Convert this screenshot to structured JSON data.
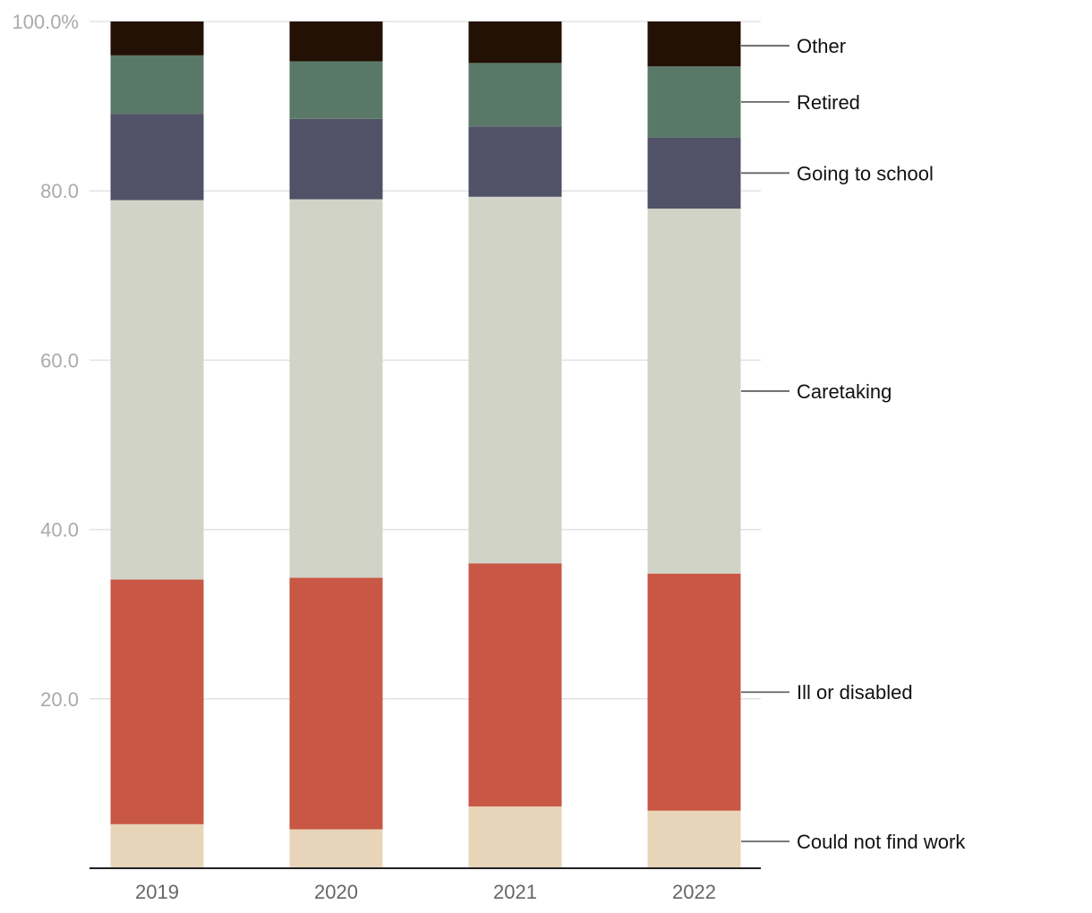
{
  "chart_data": {
    "type": "bar",
    "stacked": true,
    "categories": [
      "2019",
      "2020",
      "2021",
      "2022"
    ],
    "series": [
      {
        "name": "Could not find work",
        "color": "#e8d4b8",
        "values": [
          5.2,
          4.6,
          7.3,
          6.8
        ]
      },
      {
        "name": "Ill or disabled",
        "color": "#c85745",
        "values": [
          28.9,
          29.7,
          28.7,
          28.0
        ]
      },
      {
        "name": "Caretaking",
        "color": "#d1d3c6",
        "values": [
          44.8,
          44.7,
          43.3,
          43.1
        ]
      },
      {
        "name": "Going to school",
        "color": "#515167",
        "values": [
          10.2,
          9.5,
          8.3,
          8.4
        ]
      },
      {
        "name": "Retired",
        "color": "#5a7868",
        "values": [
          6.9,
          6.8,
          7.5,
          8.4
        ]
      },
      {
        "name": "Other",
        "color": "#221104",
        "values": [
          4.0,
          4.7,
          4.9,
          5.3
        ]
      }
    ],
    "ylim": [
      0,
      100
    ],
    "yticks": [
      "",
      "20.0",
      "40.0",
      "60.0",
      "80.0",
      "100.0%"
    ],
    "grid": true,
    "legend": "right, inline labels"
  }
}
